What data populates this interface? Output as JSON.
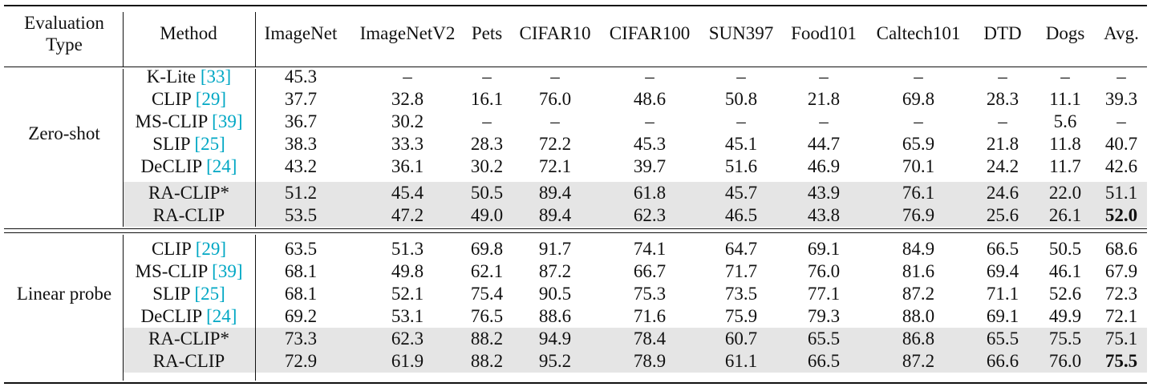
{
  "table": {
    "headers": [
      "Evaluation Type",
      "Method",
      "ImageNet",
      "ImageNetV2",
      "Pets",
      "CIFAR10",
      "CIFAR100",
      "SUN397",
      "Food101",
      "Caltech101",
      "DTD",
      "Dogs",
      "Avg."
    ],
    "header_eval_line1": "Evaluation",
    "header_eval_line2": "Type",
    "groups": [
      {
        "label": "Zero-shot",
        "rows": [
          {
            "method": "K-Lite ",
            "cite": "[33]",
            "values": [
              "45.3",
              "–",
              "–",
              "–",
              "–",
              "–",
              "–",
              "–",
              "–",
              "–",
              "–"
            ],
            "shaded": false
          },
          {
            "method": "CLIP ",
            "cite": "[29]",
            "values": [
              "37.7",
              "32.8",
              "16.1",
              "76.0",
              "48.6",
              "50.8",
              "21.8",
              "69.8",
              "28.3",
              "11.1",
              "39.3"
            ],
            "shaded": false
          },
          {
            "method": "MS-CLIP ",
            "cite": "[39]",
            "values": [
              "36.7",
              "30.2",
              "–",
              "–",
              "–",
              "–",
              "–",
              "–",
              "–",
              "5.6",
              "–"
            ],
            "shaded": false
          },
          {
            "method": "SLIP ",
            "cite": "[25]",
            "values": [
              "38.3",
              "33.3",
              "28.3",
              "72.2",
              "45.3",
              "45.1",
              "44.7",
              "65.9",
              "21.8",
              "11.8",
              "40.7"
            ],
            "shaded": false
          },
          {
            "method": "DeCLIP ",
            "cite": "[24]",
            "values": [
              "43.2",
              "36.1",
              "30.2",
              "72.1",
              "39.7",
              "51.6",
              "46.9",
              "70.1",
              "24.2",
              "11.7",
              "42.6"
            ],
            "shaded": false
          },
          {
            "method": "RA-CLIP*",
            "cite": "",
            "values": [
              "51.2",
              "45.4",
              "50.5",
              "89.4",
              "61.8",
              "45.7",
              "43.9",
              "76.1",
              "24.6",
              "22.0",
              "51.1"
            ],
            "shaded": true
          },
          {
            "method": "RA-CLIP",
            "cite": "",
            "values": [
              "53.5",
              "47.2",
              "49.0",
              "89.4",
              "62.3",
              "46.5",
              "43.8",
              "76.9",
              "25.6",
              "26.1",
              "52.0"
            ],
            "shaded": true,
            "bold_avg": true
          }
        ]
      },
      {
        "label": "Linear probe",
        "rows": [
          {
            "method": "CLIP ",
            "cite": "[29]",
            "values": [
              "63.5",
              "51.3",
              "69.8",
              "91.7",
              "74.1",
              "64.7",
              "69.1",
              "84.9",
              "66.5",
              "50.5",
              "68.6"
            ],
            "shaded": false
          },
          {
            "method": "MS-CLIP ",
            "cite": "[39]",
            "values": [
              "68.1",
              "49.8",
              "62.1",
              "87.2",
              "66.7",
              "71.7",
              "76.0",
              "81.6",
              "69.4",
              "46.1",
              "67.9"
            ],
            "shaded": false
          },
          {
            "method": "SLIP ",
            "cite": "[25]",
            "values": [
              "68.1",
              "52.1",
              "75.4",
              "90.5",
              "75.3",
              "73.5",
              "77.1",
              "87.2",
              "71.1",
              "52.6",
              "72.3"
            ],
            "shaded": false
          },
          {
            "method": "DeCLIP ",
            "cite": "[24]",
            "values": [
              "69.2",
              "53.1",
              "76.5",
              "88.6",
              "71.6",
              "75.9",
              "79.3",
              "88.0",
              "69.1",
              "49.9",
              "72.1"
            ],
            "shaded": false
          },
          {
            "method": "RA-CLIP*",
            "cite": "",
            "values": [
              "73.3",
              "62.3",
              "88.2",
              "94.9",
              "78.4",
              "60.7",
              "65.5",
              "86.8",
              "65.5",
              "75.5",
              "75.1"
            ],
            "shaded": true
          },
          {
            "method": "RA-CLIP",
            "cite": "",
            "values": [
              "72.9",
              "61.9",
              "88.2",
              "95.2",
              "78.9",
              "61.1",
              "66.5",
              "87.2",
              "66.6",
              "76.0",
              "75.5"
            ],
            "shaded": true,
            "bold_avg": true
          }
        ]
      }
    ]
  }
}
